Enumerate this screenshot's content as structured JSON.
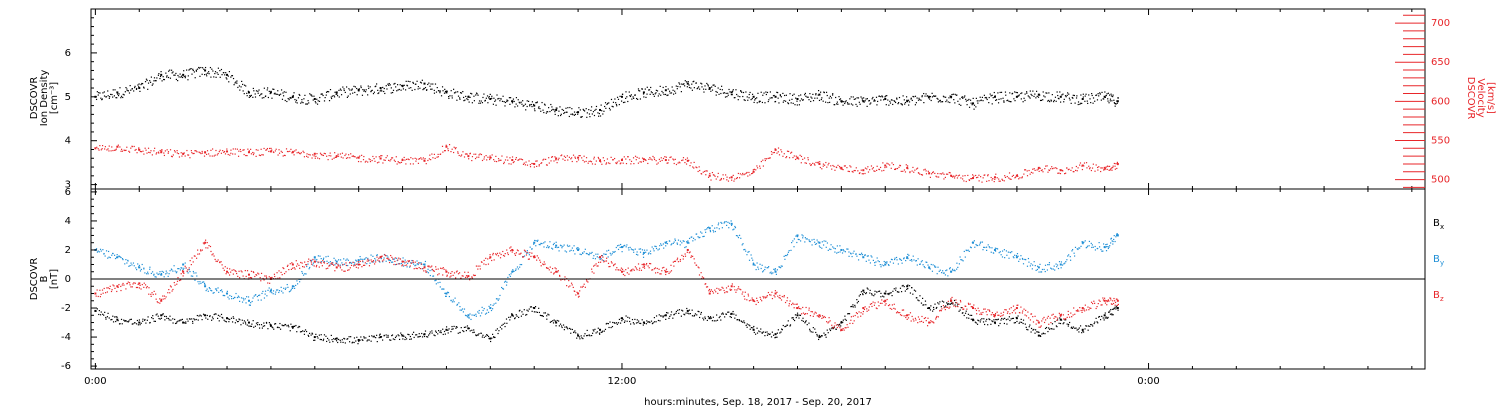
{
  "chart_data": [
    {
      "type": "scatter",
      "panel": "plasma",
      "ylabel_lines": [
        "DSCOVR",
        "Ion Density",
        "[cm⁻³]"
      ],
      "ylim": [
        2.9,
        7.0
      ],
      "yticks": [
        3,
        4,
        5,
        6
      ],
      "y2label_lines": [
        "DSCOVR",
        "Velocity",
        "[km/s]"
      ],
      "y2lim": [
        488,
        718
      ],
      "y2ticks": [
        500,
        550,
        600,
        650,
        700
      ],
      "xlim_hours": [
        -0.1,
        30.3
      ],
      "xtick_labels": [
        "0:00",
        "12:00",
        "0:00"
      ],
      "grid": false,
      "series": [
        {
          "name": "Ion Density",
          "axis": "left",
          "color": "#000000",
          "x": [
            0,
            0.5,
            1,
            1.5,
            2,
            2.5,
            3,
            3.5,
            4,
            4.5,
            5,
            5.5,
            6,
            6.5,
            7,
            7.5,
            8,
            8.5,
            9,
            9.5,
            10,
            10.5,
            11,
            11.5,
            12,
            12.5,
            13,
            13.5,
            14,
            14.5,
            15,
            15.5,
            16,
            16.5,
            17,
            17.5,
            18,
            18.5,
            19,
            19.5,
            20,
            20.5,
            21,
            21.5,
            22,
            22.5,
            23,
            23.3
          ],
          "y": [
            5.0,
            5.1,
            5.2,
            5.5,
            5.5,
            5.6,
            5.5,
            5.1,
            5.1,
            5.0,
            4.95,
            5.1,
            5.15,
            5.2,
            5.25,
            5.3,
            5.1,
            5.0,
            4.95,
            4.9,
            4.8,
            4.7,
            4.65,
            4.7,
            5.0,
            5.1,
            5.15,
            5.3,
            5.2,
            5.1,
            5.0,
            5.0,
            4.95,
            5.05,
            4.9,
            4.9,
            4.95,
            4.9,
            5.0,
            5.0,
            4.85,
            5.0,
            5.0,
            5.05,
            5.0,
            4.95,
            5.0,
            4.9
          ]
        },
        {
          "name": "Velocity",
          "axis": "right",
          "color": "#e8262a",
          "x": [
            0,
            0.5,
            1,
            1.5,
            2,
            2.5,
            3,
            3.5,
            4,
            4.5,
            5,
            5.5,
            6,
            6.5,
            7,
            7.5,
            8,
            8.5,
            9,
            9.5,
            10,
            10.5,
            11,
            11.5,
            12,
            12.5,
            13,
            13.5,
            14,
            14.5,
            15,
            15.5,
            16,
            16.5,
            17,
            17.5,
            18,
            18.5,
            19,
            19.5,
            20,
            20.5,
            21,
            21.5,
            22,
            22.5,
            23,
            23.3
          ],
          "y": [
            540,
            542,
            538,
            535,
            533,
            535,
            536,
            535,
            536,
            535,
            533,
            530,
            528,
            527,
            525,
            524,
            542,
            530,
            528,
            525,
            520,
            527,
            528,
            524,
            525,
            526,
            525,
            524,
            505,
            503,
            510,
            538,
            528,
            520,
            515,
            512,
            518,
            515,
            508,
            505,
            502,
            503,
            505,
            515,
            512,
            518,
            515,
            520
          ]
        }
      ]
    },
    {
      "type": "scatter",
      "panel": "magnetic_field",
      "ylabel_lines": [
        "DSCOVR",
        "B",
        "[nT]"
      ],
      "ylim": [
        -6.2,
        6.2
      ],
      "yticks": [
        -6,
        -4,
        -2,
        0,
        2,
        4,
        6
      ],
      "zero_line": true,
      "xlim_hours": [
        -0.1,
        30.3
      ],
      "xtick_labels": [
        "0:00",
        "12:00",
        "0:00"
      ],
      "xlabel": "hours:minutes, Sep. 18, 2017 - Sep. 20, 2017",
      "legend_placement": "right",
      "grid": false,
      "series": [
        {
          "name": "Bx",
          "legend_base": "B",
          "legend_sub": "x",
          "color": "#000000",
          "x": [
            0,
            0.5,
            1,
            1.5,
            2,
            2.5,
            3,
            3.5,
            4,
            4.5,
            5,
            5.5,
            6,
            6.5,
            7,
            7.5,
            8,
            8.5,
            9,
            9.5,
            10,
            10.5,
            11,
            11.5,
            12,
            12.5,
            13,
            13.5,
            14,
            14.5,
            15,
            15.5,
            16,
            16.5,
            17,
            17.5,
            18,
            18.5,
            19,
            19.5,
            20,
            20.5,
            21,
            21.5,
            22,
            22.5,
            23,
            23.3
          ],
          "y": [
            -2.2,
            -2.8,
            -3.0,
            -2.5,
            -3.0,
            -2.5,
            -2.7,
            -3.0,
            -3.2,
            -3.3,
            -4.0,
            -4.1,
            -4.2,
            -4.0,
            -3.9,
            -3.8,
            -3.5,
            -3.4,
            -4.1,
            -2.5,
            -2.0,
            -3.0,
            -3.9,
            -3.5,
            -2.7,
            -3.0,
            -2.5,
            -2.2,
            -2.7,
            -2.4,
            -3.5,
            -3.8,
            -2.5,
            -4.0,
            -3.0,
            -0.8,
            -1.0,
            -0.5,
            -2.0,
            -1.5,
            -2.8,
            -3.0,
            -2.7,
            -3.9,
            -2.8,
            -3.5,
            -2.5,
            -2.0
          ]
        },
        {
          "name": "By",
          "legend_base": "B",
          "legend_sub": "y",
          "color": "#1f8fd6",
          "x": [
            0,
            0.5,
            1,
            1.5,
            2,
            2.5,
            3,
            3.5,
            4,
            4.5,
            5,
            5.5,
            6,
            6.5,
            7,
            7.5,
            8,
            8.5,
            9,
            9.5,
            10,
            10.5,
            11,
            11.5,
            12,
            12.5,
            13,
            13.5,
            14,
            14.5,
            15,
            15.5,
            16,
            16.5,
            17,
            17.5,
            18,
            18.5,
            19,
            19.5,
            20,
            20.5,
            21,
            21.5,
            22,
            22.5,
            23,
            23.3
          ],
          "y": [
            2.0,
            1.5,
            0.8,
            0.3,
            1.0,
            -0.5,
            -1.0,
            -1.5,
            -0.8,
            -0.5,
            1.5,
            1.2,
            1.3,
            1.5,
            1.2,
            1.0,
            -1.0,
            -2.5,
            -2.0,
            0.5,
            2.5,
            2.3,
            2.0,
            1.5,
            2.2,
            1.8,
            2.5,
            2.5,
            3.5,
            3.8,
            1.0,
            0.5,
            3.0,
            2.5,
            2.0,
            1.5,
            1.0,
            1.5,
            0.8,
            0.5,
            2.5,
            2.0,
            1.5,
            0.8,
            1.0,
            2.5,
            2.2,
            3.0
          ]
        },
        {
          "name": "Bz",
          "legend_base": "B",
          "legend_sub": "z",
          "color": "#e8262a",
          "x": [
            0,
            0.5,
            1,
            1.5,
            2,
            2.5,
            3,
            3.5,
            4,
            4.5,
            5,
            5.5,
            6,
            6.5,
            7,
            7.5,
            8,
            8.5,
            9,
            9.5,
            10,
            10.5,
            11,
            11.5,
            12,
            12.5,
            13,
            13.5,
            14,
            14.5,
            15,
            15.5,
            16,
            16.5,
            17,
            17.5,
            18,
            18.5,
            19,
            19.5,
            20,
            20.5,
            21,
            21.5,
            22,
            22.5,
            23,
            23.3
          ],
          "y": [
            -1.0,
            -0.5,
            -0.3,
            -1.5,
            0.5,
            2.5,
            0.5,
            0.3,
            0.0,
            1.0,
            1.2,
            0.8,
            1.0,
            1.5,
            1.2,
            0.8,
            0.5,
            0.2,
            1.5,
            2.0,
            1.5,
            0.5,
            -1.0,
            1.5,
            0.5,
            1.0,
            0.5,
            2.0,
            -1.0,
            -0.5,
            -1.5,
            -1.0,
            -2.0,
            -2.5,
            -3.5,
            -2.0,
            -1.5,
            -2.5,
            -3.0,
            -1.5,
            -2.0,
            -2.5,
            -2.0,
            -3.0,
            -2.5,
            -2.0,
            -1.5,
            -1.5
          ]
        }
      ]
    }
  ]
}
